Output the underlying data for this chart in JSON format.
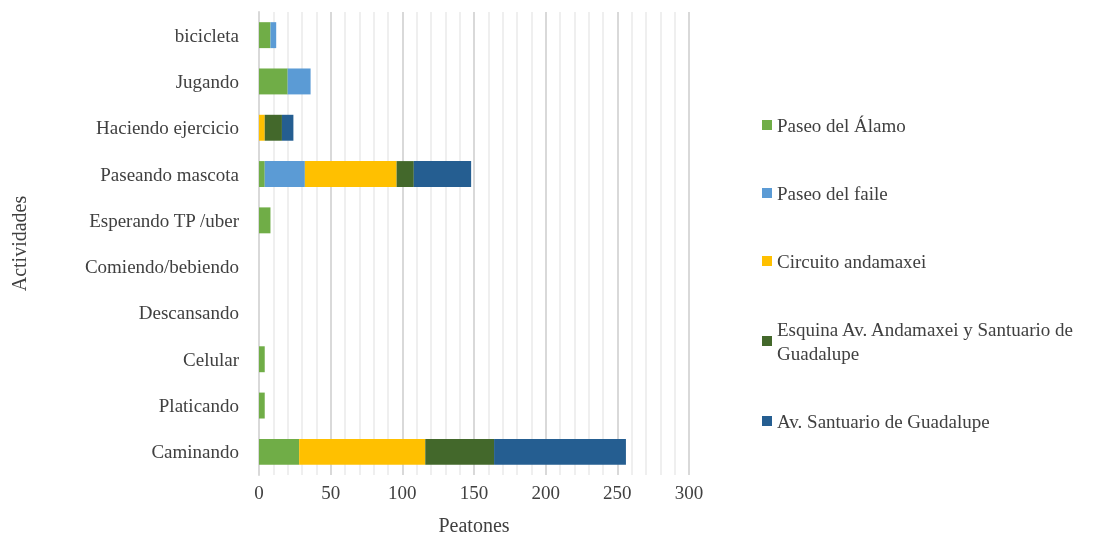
{
  "chart_data": {
    "type": "bar",
    "orientation": "horizontal",
    "stacked": true,
    "xlabel": "Peatones",
    "ylabel": "Actividades",
    "categories": [
      "bicicleta",
      "Jugando",
      "Haciendo ejercicio",
      "Paseando mascota",
      "Esperando TP /uber",
      "Comiendo/bebiendo",
      "Descansando",
      "Celular",
      "Platicando",
      "Caminando"
    ],
    "series": [
      {
        "name": "Paseo del Álamo",
        "color": "#70ad47",
        "values": [
          8,
          20,
          0,
          4,
          8,
          0,
          0,
          4,
          4,
          28
        ]
      },
      {
        "name": "Paseo del faile",
        "color": "#5b9bd5",
        "values": [
          4,
          16,
          0,
          28,
          0,
          0,
          0,
          0,
          0,
          0
        ]
      },
      {
        "name": "Circuito andamaxei",
        "color": "#ffc000",
        "values": [
          0,
          0,
          4,
          64,
          0,
          0,
          0,
          0,
          0,
          88
        ]
      },
      {
        "name": "Esquina Av. Andamaxei y Santuario de Guadalupe",
        "color": "#43682b",
        "values": [
          0,
          0,
          12,
          12,
          0,
          0,
          0,
          0,
          0,
          48
        ]
      },
      {
        "name": "Av. Santuario de Guadalupe",
        "color": "#255e91",
        "values": [
          0,
          0,
          8,
          40,
          0,
          0,
          0,
          0,
          0,
          92
        ]
      }
    ],
    "xlim": [
      0,
      300
    ],
    "xticks": [
      0,
      50,
      100,
      150,
      200,
      250,
      300
    ],
    "grid": true,
    "legend": "right"
  }
}
